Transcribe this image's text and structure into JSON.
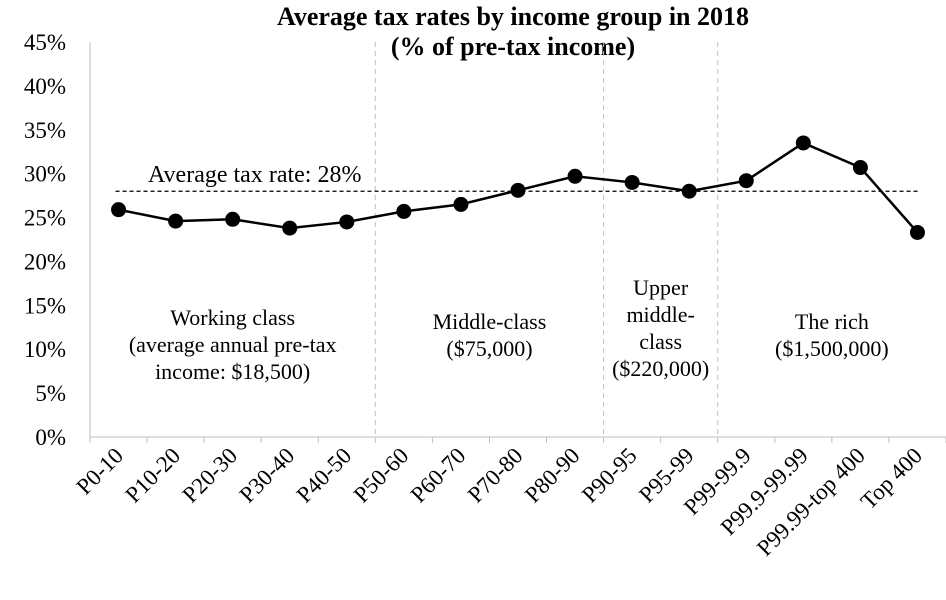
{
  "chart_data": {
    "type": "line",
    "title": "Average tax rates by income group in 2018",
    "subtitle": "(% of pre-tax income)",
    "xlabel": "",
    "ylabel": "",
    "categories": [
      "P0-10",
      "P10-20",
      "P20-30",
      "P30-40",
      "P40-50",
      "P50-60",
      "P60-70",
      "P70-80",
      "P80-90",
      "P90-95",
      "P95-99",
      "P99-99.9",
      "P99.9-99.99",
      "P99.99-top 400",
      "Top 400"
    ],
    "series": [
      {
        "values": [
          25.9,
          24.6,
          24.8,
          23.8,
          24.5,
          25.7,
          26.5,
          28.1,
          29.7,
          29.0,
          28.0,
          29.2,
          33.5,
          30.7,
          23.3
        ]
      }
    ],
    "ylim": [
      0,
      45
    ],
    "yticks": [
      0,
      5,
      10,
      15,
      20,
      25,
      30,
      35,
      40,
      45
    ],
    "ytick_labels": [
      "0%",
      "5%",
      "10%",
      "15%",
      "20%",
      "25%",
      "30%",
      "35%",
      "40%",
      "45%"
    ],
    "grid": false,
    "legend": "none",
    "reference_line": {
      "value": 28,
      "label": "Average tax rate: 28%",
      "style": "dashed"
    },
    "group_dividers_after": [
      "P40-50",
      "P80-90",
      "P95-99"
    ],
    "groups": [
      {
        "lines": [
          "Working class",
          "(average annual pre-tax",
          "income: $18,500)"
        ]
      },
      {
        "lines": [
          "Middle-class",
          "($75,000)"
        ]
      },
      {
        "lines": [
          "Upper",
          "middle-",
          "class",
          "($220,000)"
        ]
      },
      {
        "lines": [
          "The rich",
          "($1,500,000)"
        ]
      }
    ],
    "colors": {
      "line": "#000000",
      "marker": "#000000",
      "divider": "#bfbfbf"
    }
  }
}
